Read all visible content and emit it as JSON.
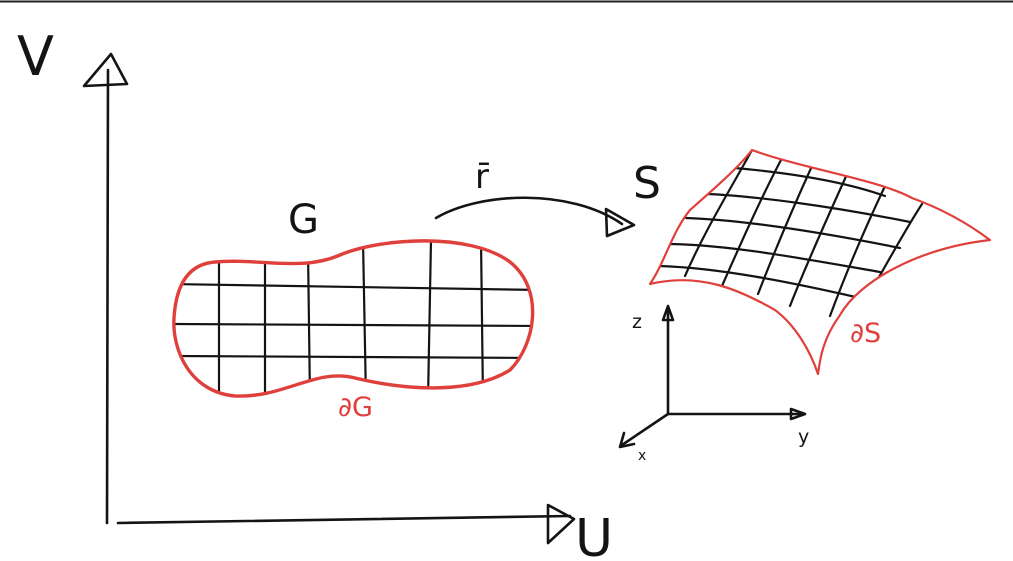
{
  "diagram": {
    "uv_plane": {
      "v_axis_label": "V",
      "u_axis_label": "U"
    },
    "domain": {
      "label": "G",
      "boundary_label": "∂G"
    },
    "mapping": {
      "label": "r̄"
    },
    "surface": {
      "label": "S",
      "boundary_label": "∂S"
    },
    "xyz_axes": {
      "z_label": "z",
      "y_label": "y",
      "x_label": "x"
    },
    "colors": {
      "ink": "#141414",
      "boundary": "#e0403c",
      "background": "#ffffff"
    }
  }
}
